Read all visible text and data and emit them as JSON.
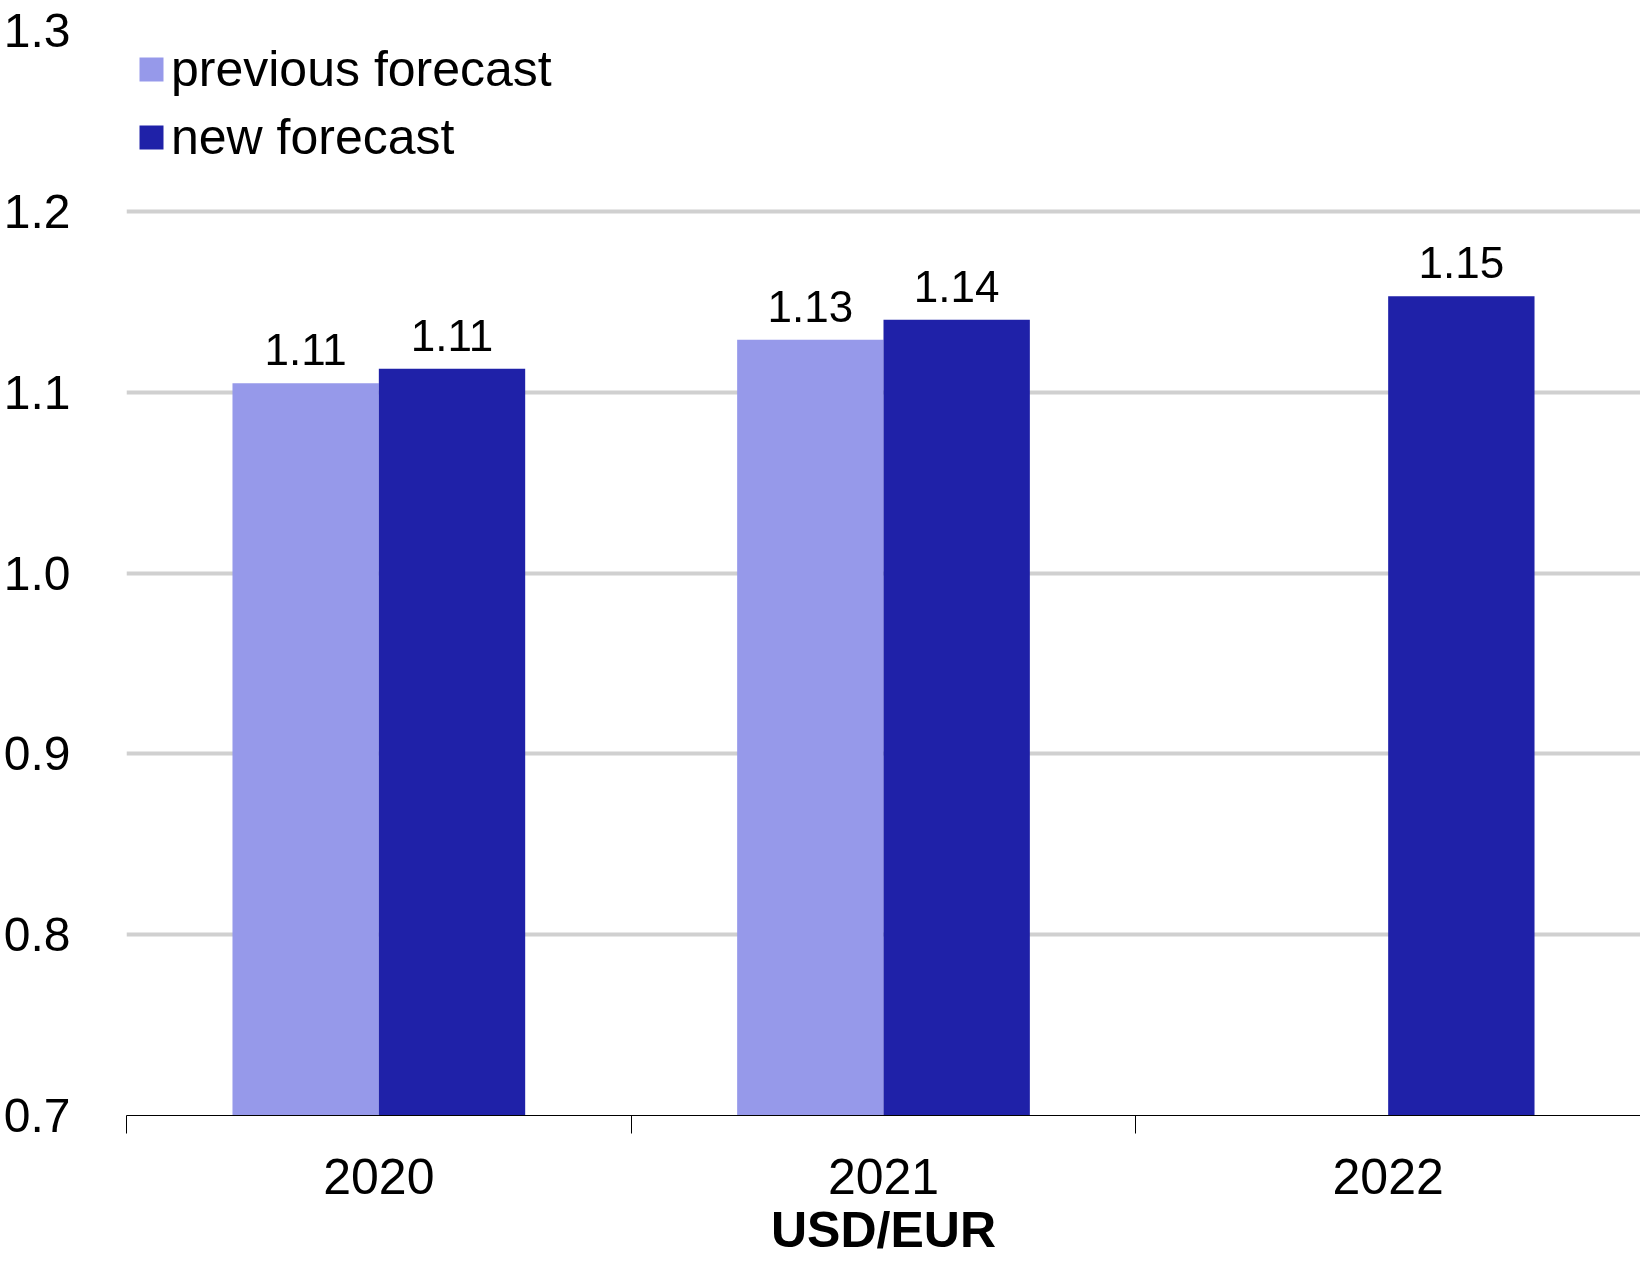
{
  "chart_data": {
    "type": "bar",
    "xlabel": "USD/EUR",
    "categories": [
      "2020",
      "2021",
      "2022"
    ],
    "series": [
      {
        "name": "previous forecast",
        "color": "#9699ea",
        "values": [
          1.105,
          1.129,
          null
        ],
        "value_labels": [
          "1.11",
          "1.13",
          null
        ]
      },
      {
        "name": "new forecast",
        "color": "#1f21a8",
        "values": [
          1.113,
          1.14,
          1.153
        ],
        "value_labels": [
          "1.11",
          "1.14",
          "1.15"
        ]
      }
    ],
    "ylim": [
      0.7,
      1.3
    ],
    "yticks": [
      0.7,
      0.8,
      0.9,
      {
        "value": 1.0,
        "label": "1.0"
      },
      1.1,
      1.2,
      1.3
    ],
    "grid": "y",
    "legend": "top left"
  }
}
